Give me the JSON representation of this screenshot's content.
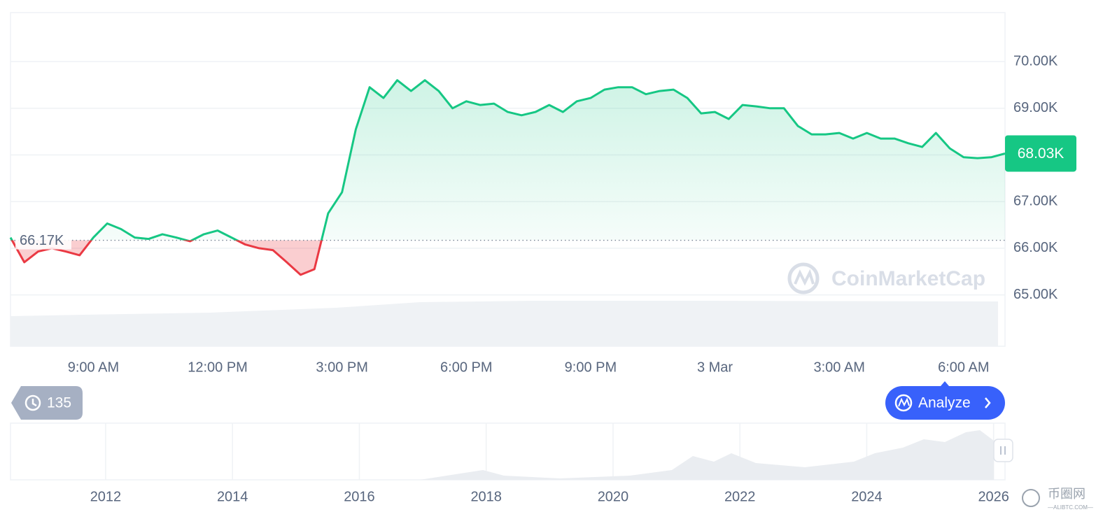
{
  "chart_data": [
    {
      "type": "line",
      "categories": [
        null,
        null,
        null,
        null,
        null,
        null,
        "9:00 AM",
        null,
        null,
        null,
        null,
        null,
        null,
        null,
        null,
        "12:00 PM",
        null,
        null,
        null,
        null,
        null,
        null,
        null,
        null,
        "3:00 PM",
        null,
        null,
        null,
        null,
        null,
        null,
        null,
        null,
        "6:00 PM",
        null,
        null,
        null,
        null,
        null,
        null,
        null,
        null,
        "9:00 PM",
        null,
        null,
        null,
        null,
        null,
        null,
        null,
        null,
        "3 Mar",
        null,
        null,
        null,
        null,
        null,
        null,
        null,
        null,
        "3:00 AM",
        null,
        null,
        null,
        null,
        null,
        null,
        null,
        null,
        "6:00 AM",
        null,
        null,
        null
      ],
      "values": [
        66230,
        65700,
        65930,
        66000,
        65930,
        65850,
        66230,
        66530,
        66410,
        66230,
        66200,
        66300,
        66230,
        66150,
        66300,
        66380,
        66230,
        66080,
        66000,
        65960,
        65700,
        65430,
        65550,
        66750,
        67200,
        68550,
        69450,
        69220,
        69600,
        69370,
        69600,
        69370,
        69000,
        69150,
        69070,
        69100,
        68920,
        68850,
        68920,
        69070,
        68920,
        69150,
        69220,
        69400,
        69450,
        69450,
        69300,
        69370,
        69400,
        69220,
        68890,
        68920,
        68770,
        69070,
        69040,
        69000,
        69000,
        68620,
        68440,
        68440,
        68470,
        68350,
        68470,
        68350,
        68350,
        68250,
        68170,
        68470,
        68140,
        67950,
        67930,
        67950,
        68030
      ],
      "ylim": [
        63900,
        71050
      ],
      "yticks": [
        {
          "value": 65000,
          "label": "65.00K"
        },
        {
          "value": 66000,
          "label": "66.00K"
        },
        {
          "value": 67000,
          "label": "67.00K"
        },
        {
          "value": 68000,
          "label": "68.00K"
        },
        {
          "value": 69000,
          "label": "69.00K"
        },
        {
          "value": 70000,
          "label": "70.00K"
        }
      ],
      "baseline": {
        "value": 66170,
        "label": "66.17K"
      },
      "current_price": {
        "value": 68030,
        "label": "68.03K"
      },
      "up_color": "#16c784",
      "down_color": "#ea3943",
      "grid": true
    },
    {
      "type": "area",
      "xlim": [
        2010.5,
        2026.18
      ],
      "xticks": [
        2012,
        2014,
        2016,
        2018,
        2020,
        2022,
        2024,
        2026
      ]
    }
  ],
  "ui": {
    "history_count": "135",
    "analyze_button": "Analyze",
    "watermark": "CoinMarketCap",
    "site_watermark": "币圈网",
    "site_url": "—ALIBTC.COM—"
  }
}
